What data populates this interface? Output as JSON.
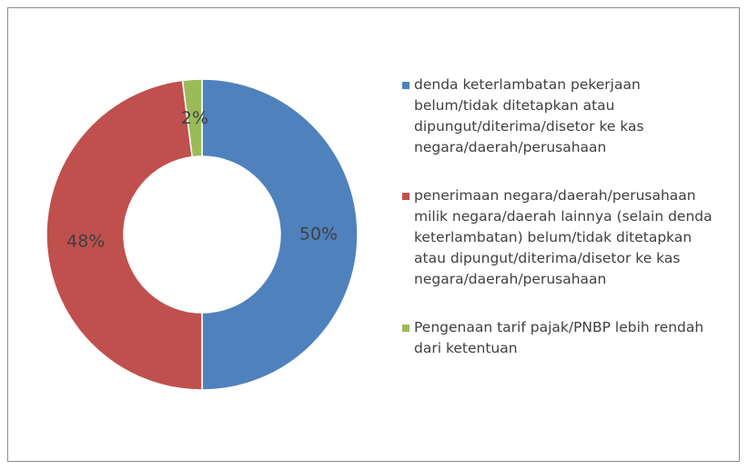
{
  "chart_data": {
    "type": "donut",
    "categories": [
      "denda keterlambatan pekerjaan belum/tidak ditetapkan atau dipungut/diterima/disetor ke kas negara/daerah/perusahaan",
      "penerimaan negara/daerah/perusahaan milik negara/daerah lainnya (selain denda keterlambatan) belum/tidak ditetapkan atau dipungut/diterima/disetor ke kas negara/daerah/perusahaan",
      "Pengenaan tarif pajak/PNBP lebih rendah dari ketentuan"
    ],
    "values": [
      50,
      48,
      2
    ],
    "value_labels": [
      "50%",
      "48%",
      "2%"
    ],
    "colors": [
      "#4f81bd",
      "#c0504d",
      "#9bbb59"
    ],
    "legend": "right"
  }
}
